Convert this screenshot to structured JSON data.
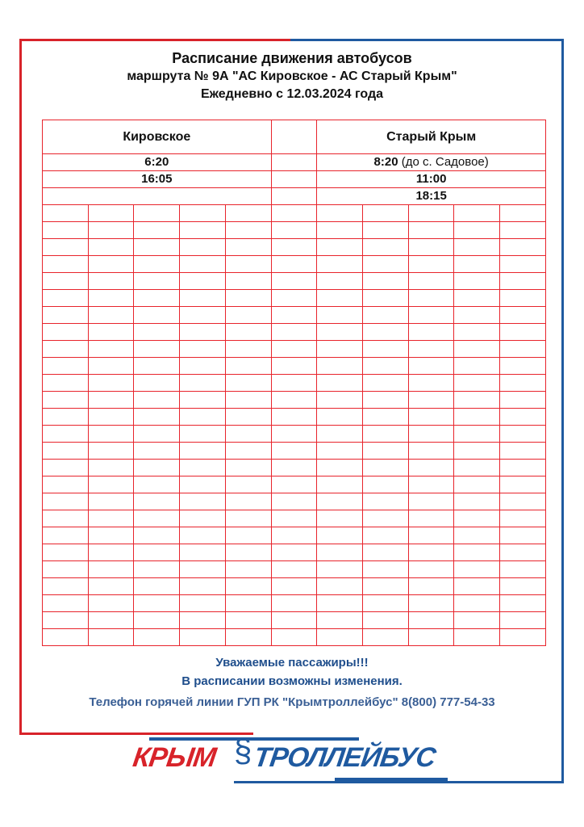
{
  "title": {
    "line1": "Расписание движения автобусов",
    "line2": "маршрута № 9А  \"АС Кировское - АС Старый Крым\"",
    "line3": "Ежедневно   с 12.03.2024 года"
  },
  "table": {
    "headers": [
      "Кировское",
      "",
      "Старый Крым"
    ],
    "rows": [
      {
        "left": "6:20",
        "right_time": "8:20",
        "right_note": " (до с. Садовое)"
      },
      {
        "left": "16:05",
        "right_time": "11:00",
        "right_note": ""
      },
      {
        "left": "",
        "right_time": "18:15",
        "right_note": ""
      }
    ]
  },
  "footer": {
    "line1": "Уважаемые пассажиры!!!",
    "line2": "В расписании возможны изменения.",
    "line3": "Телефон горячей линии ГУП РК \"Крымтроллейбус\" 8(800) 777-54-33"
  },
  "logo": {
    "text_left": "КРЫМ",
    "text_right": "ТРОЛЛЕЙБУС"
  },
  "colors": {
    "red": "#e8242c",
    "blue": "#1f4e8c"
  }
}
